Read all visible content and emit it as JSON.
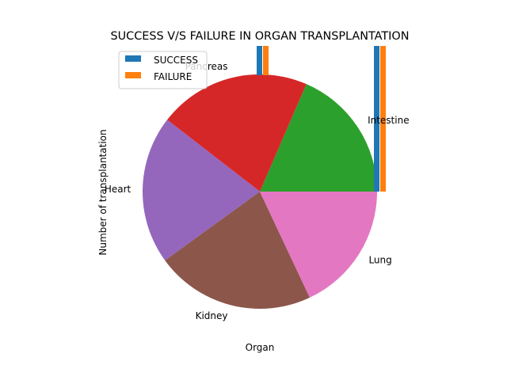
{
  "chart_data": {
    "type": "pie",
    "title": "SUCCESS V/S FAILURE IN ORGAN TRANSPLANTATION",
    "xlabel": "Organ",
    "ylabel": "Number of transplantation",
    "slices": [
      {
        "label": "Intestine",
        "value": 18.5,
        "color": "#2ca02c"
      },
      {
        "label": "Pancreas",
        "value": 21.0,
        "color": "#d62728"
      },
      {
        "label": "Heart",
        "value": 20.5,
        "color": "#9467bd"
      },
      {
        "label": "Kidney",
        "value": 22.0,
        "color": "#8c564b"
      },
      {
        "label": "Lung",
        "value": 18.0,
        "color": "#e377c2"
      }
    ],
    "series": [
      {
        "name": "SUCCESS",
        "color": "#1f77b4"
      },
      {
        "name": "FAILURE",
        "color": "#ff7f0e"
      }
    ],
    "bar_categories": [
      "Pancreas",
      "Intestine"
    ],
    "legend_position": "upper-left"
  }
}
